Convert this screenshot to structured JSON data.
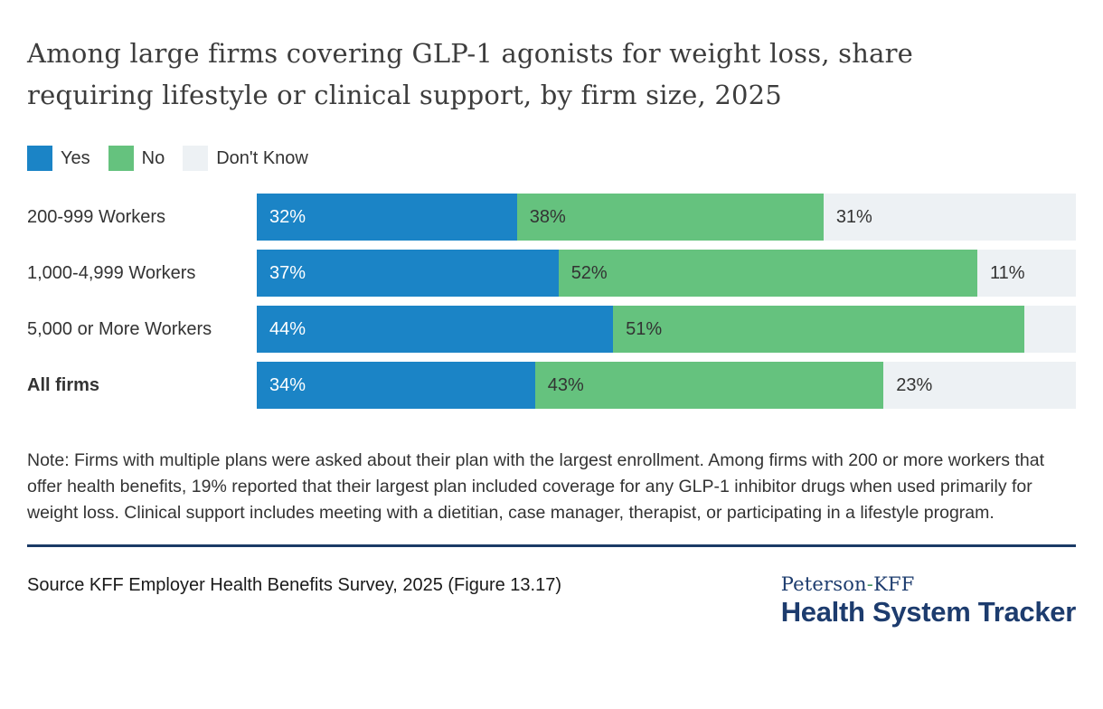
{
  "chart_data": {
    "type": "bar",
    "stacked": true,
    "orientation": "horizontal",
    "title": "Among large firms covering GLP-1 agonists for weight loss, share requiring lifestyle or clinical support, by firm size, 2025",
    "legend": [
      "Yes",
      "No",
      "Don't Know"
    ],
    "legend_position": "top-left",
    "grid": false,
    "xlim": [
      0,
      100
    ],
    "value_suffix": "%",
    "colors": {
      "yes": "#1b84c6",
      "no": "#65c27e",
      "dont_know": "#edf1f4"
    },
    "categories": [
      "200-999 Workers",
      "1,000-4,999 Workers",
      "5,000 or More Workers",
      "All firms"
    ],
    "series": [
      {
        "name": "Yes",
        "values": [
          32,
          37,
          44,
          34
        ]
      },
      {
        "name": "No",
        "values": [
          38,
          52,
          51,
          43
        ]
      },
      {
        "name": "Don't Know",
        "values": [
          31,
          11,
          5,
          23
        ]
      }
    ],
    "rows": [
      {
        "category": "200-999 Workers",
        "values": [
          32,
          38,
          31
        ],
        "labels": [
          "32%",
          "38%",
          "31%"
        ]
      },
      {
        "category": "1,000-4,999 Workers",
        "values": [
          37,
          52,
          11
        ],
        "labels": [
          "37%",
          "52%",
          "11%"
        ]
      },
      {
        "category": "5,000 or More Workers",
        "values": [
          44,
          51,
          5
        ],
        "labels": [
          "44%",
          "51%",
          ""
        ]
      },
      {
        "category": "All firms",
        "values": [
          34,
          43,
          23
        ],
        "labels": [
          "34%",
          "43%",
          "23%"
        ]
      }
    ]
  },
  "note": "Note: Firms with multiple plans were asked about their plan with the largest enrollment. Among firms with 200 or more workers that offer health benefits, 19% reported that their largest plan included coverage for any GLP-1 inhibitor drugs when used primarily for weight loss. Clinical support includes meeting with a dietitian, case manager, therapist, or participating in a lifestyle program.",
  "footer": {
    "source": "Source KFF Employer Health Benefits Survey, 2025 (Figure 13.17)",
    "rule_color": "#1b3a66",
    "logo": {
      "brand_left": "Peterson",
      "brand_hyphen": "-",
      "brand_right": "KFF",
      "brand_title": "Health System Tracker",
      "navy": "#1d3c6e",
      "green": "#3f9060"
    }
  }
}
